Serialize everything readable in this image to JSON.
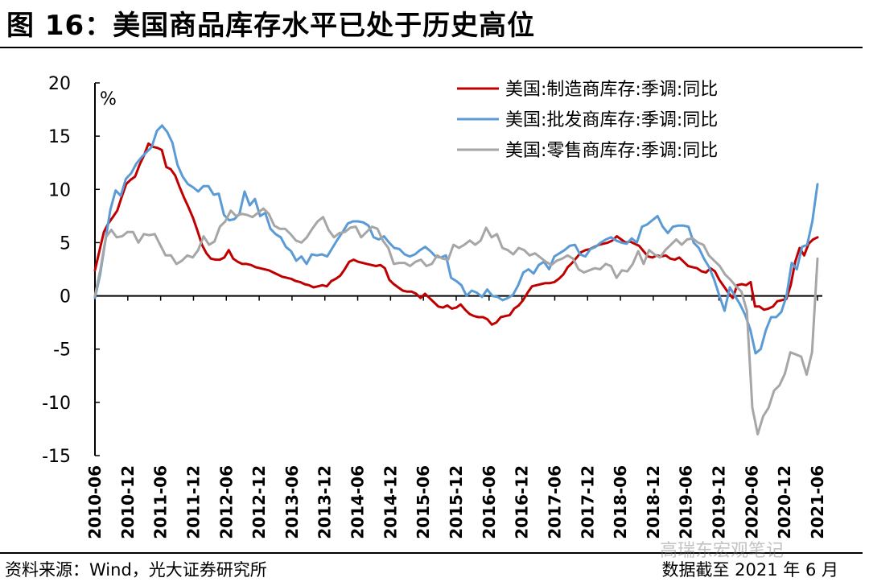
{
  "header": {
    "title": "图 16：美国商品库存水平已处于历史高位"
  },
  "footer": {
    "source": "资料来源：Wind，光大证券研究所",
    "cutoff": "数据截至 2021 年 6 月",
    "watermark": "高瑞东宏观笔记"
  },
  "colors": {
    "manufacturing": "#C00000",
    "wholesale": "#5B9BD5",
    "retail": "#A6A6A6"
  },
  "chart_data": {
    "type": "line",
    "ylabel": "%",
    "ylim": [
      -15,
      20
    ],
    "yticks": [
      20,
      15,
      10,
      5,
      0,
      -5,
      -10,
      -15
    ],
    "grid": false,
    "legend_position": "top-right",
    "x_start": "2010-06",
    "x_end": "2021-06",
    "xticks": [
      "2010-06",
      "2010-12",
      "2011-06",
      "2011-12",
      "2012-06",
      "2012-12",
      "2013-06",
      "2013-12",
      "2014-06",
      "2014-12",
      "2015-06",
      "2015-12",
      "2016-06",
      "2016-12",
      "2017-06",
      "2017-12",
      "2018-06",
      "2018-12",
      "2019-06",
      "2019-12",
      "2020-06",
      "2020-12",
      "2021-06"
    ],
    "series": [
      {
        "name": "美国:制造商库存:季调:同比",
        "color": "#C00000",
        "values": [
          2.4,
          4.2,
          6.0,
          6.8,
          7.4,
          8.0,
          9.3,
          10.5,
          10.9,
          11.2,
          12.3,
          13.2,
          14.3,
          14.0,
          13.9,
          13.7,
          12.1,
          11.9,
          11.3,
          10.2,
          9.2,
          8.3,
          7.3,
          6.1,
          4.8,
          4.0,
          3.5,
          3.4,
          3.4,
          3.6,
          4.3,
          3.5,
          3.2,
          3.0,
          3.0,
          2.9,
          2.7,
          2.6,
          2.5,
          2.4,
          2.2,
          2.0,
          1.8,
          1.7,
          1.6,
          1.4,
          1.3,
          1.1,
          1.0,
          0.8,
          0.9,
          1.0,
          0.9,
          1.4,
          1.6,
          1.9,
          2.5,
          3.2,
          3.4,
          3.2,
          3.1,
          3.0,
          2.9,
          2.8,
          2.9,
          2.6,
          1.5,
          1.1,
          0.8,
          0.5,
          0.4,
          0.4,
          0.2,
          -0.2,
          0.2,
          -0.2,
          -0.6,
          -1.0,
          -1.1,
          -0.9,
          -1.2,
          -1.1,
          -0.8,
          -1.3,
          -1.7,
          -1.9,
          -2.0,
          -2.0,
          -2.2,
          -2.7,
          -2.5,
          -2.0,
          -1.9,
          -1.8,
          -1.2,
          -0.9,
          -0.4,
          0.3,
          0.9,
          1.0,
          1.1,
          1.2,
          1.2,
          1.3,
          1.6,
          2.0,
          2.7,
          3.1,
          3.6,
          4.1,
          4.3,
          4.4,
          4.6,
          4.8,
          4.9,
          5.0,
          5.2,
          5.6,
          5.3,
          5.0,
          5.1,
          4.9,
          4.7,
          4.2,
          3.7,
          3.6,
          3.8,
          3.7,
          3.8,
          3.5,
          3.4,
          3.6,
          3.2,
          2.8,
          2.7,
          2.6,
          2.3,
          2.2,
          2.6,
          2.3,
          1.5,
          0.9,
          0.3,
          -0.2,
          1.0,
          1.1,
          1.0,
          1.3,
          -1.0,
          -1.0,
          -1.3,
          -1.2,
          -1.0,
          -0.5,
          -0.4,
          -0.3,
          1.0,
          3.2,
          4.5,
          3.8,
          4.9,
          5.3,
          5.5
        ]
      },
      {
        "name": "美国:批发商库存:季调:同比",
        "color": "#5B9BD5",
        "values": [
          -0.2,
          2.0,
          5.1,
          8.1,
          9.9,
          9.4,
          11.0,
          11.5,
          12.4,
          13.0,
          13.5,
          14.0,
          15.5,
          16.0,
          15.4,
          14.4,
          12.3,
          11.2,
          10.5,
          10.2,
          9.8,
          10.3,
          10.3,
          9.5,
          9.6,
          7.6,
          7.1,
          7.2,
          7.7,
          9.8,
          8.5,
          9.1,
          7.5,
          7.8,
          6.3,
          5.8,
          5.5,
          4.6,
          4.2,
          3.3,
          3.7,
          3.0,
          3.9,
          3.8,
          3.9,
          3.7,
          4.5,
          5.3,
          6.0,
          6.8,
          7.0,
          7.0,
          6.9,
          6.6,
          5.5,
          5.3,
          5.6,
          5.0,
          4.5,
          4.4,
          3.9,
          3.7,
          3.9,
          4.3,
          4.6,
          4.2,
          3.7,
          3.6,
          3.8,
          1.7,
          1.4,
          1.0,
          0.0,
          0.5,
          0.3,
          -0.1,
          0.6,
          0.0,
          -0.1,
          -0.4,
          -0.2,
          0.1,
          1.0,
          2.2,
          2.5,
          2.1,
          2.9,
          3.2,
          2.5,
          3.7,
          4.0,
          4.3,
          4.7,
          4.8,
          3.9,
          3.7,
          4.4,
          4.6,
          5.0,
          5.3,
          5.5,
          5.2,
          5.0,
          4.9,
          5.4,
          5.0,
          6.5,
          6.7,
          7.1,
          7.5,
          6.5,
          5.9,
          6.5,
          6.6,
          6.6,
          6.5,
          5.0,
          4.5,
          3.5,
          2.7,
          1.5,
          0.0,
          -1.4,
          0.8,
          0.0,
          -0.8,
          -1.8,
          -3.2,
          -5.4,
          -5.0,
          -3.2,
          -2.0,
          -2.0,
          -1.5,
          0.0,
          3.1,
          2.5,
          4.6,
          4.8,
          7.0,
          10.5
        ]
      },
      {
        "name": "美国:零售商库存:季调:同比",
        "color": "#A6A6A6",
        "values": [
          0.0,
          2.5,
          5.5,
          6.2,
          5.5,
          5.6,
          6.0,
          6.0,
          5.0,
          5.8,
          5.7,
          5.8,
          4.8,
          3.8,
          3.8,
          3.0,
          3.3,
          3.8,
          3.6,
          4.3,
          5.6,
          4.8,
          5.1,
          6.5,
          7.0,
          8.0,
          7.5,
          7.7,
          7.6,
          7.4,
          7.8,
          8.2,
          7.7,
          6.6,
          6.3,
          6.3,
          5.8,
          5.2,
          5.0,
          5.5,
          6.3,
          7.0,
          7.4,
          6.2,
          5.5,
          5.9,
          6.0,
          6.4,
          6.5,
          5.5,
          6.0,
          6.5,
          6.3,
          5.2,
          4.5,
          3.0,
          3.1,
          3.1,
          2.8,
          3.2,
          3.4,
          2.8,
          3.0,
          3.8,
          3.5,
          3.4,
          4.8,
          4.5,
          4.8,
          5.2,
          4.8,
          5.2,
          6.4,
          5.5,
          5.8,
          4.5,
          4.3,
          3.9,
          4.5,
          4.3,
          3.8,
          4.0,
          3.6,
          3.2,
          2.9,
          3.3,
          3.5,
          3.8,
          3.5,
          2.5,
          2.2,
          2.4,
          2.6,
          2.5,
          3.0,
          2.8,
          1.7,
          2.4,
          2.3,
          3.0,
          4.2,
          3.0,
          4.3,
          3.9,
          3.6,
          4.3,
          4.8,
          5.3,
          4.8,
          5.3,
          5.4,
          5.0,
          4.8,
          3.8,
          3.3,
          2.8,
          2.0,
          1.5,
          0.9,
          0.4,
          -1.4,
          -10.5,
          -13.0,
          -11.3,
          -10.5,
          -8.9,
          -8.4,
          -7.3,
          -5.3,
          -5.5,
          -5.7,
          -7.4,
          -5.3,
          3.5
        ]
      }
    ]
  }
}
